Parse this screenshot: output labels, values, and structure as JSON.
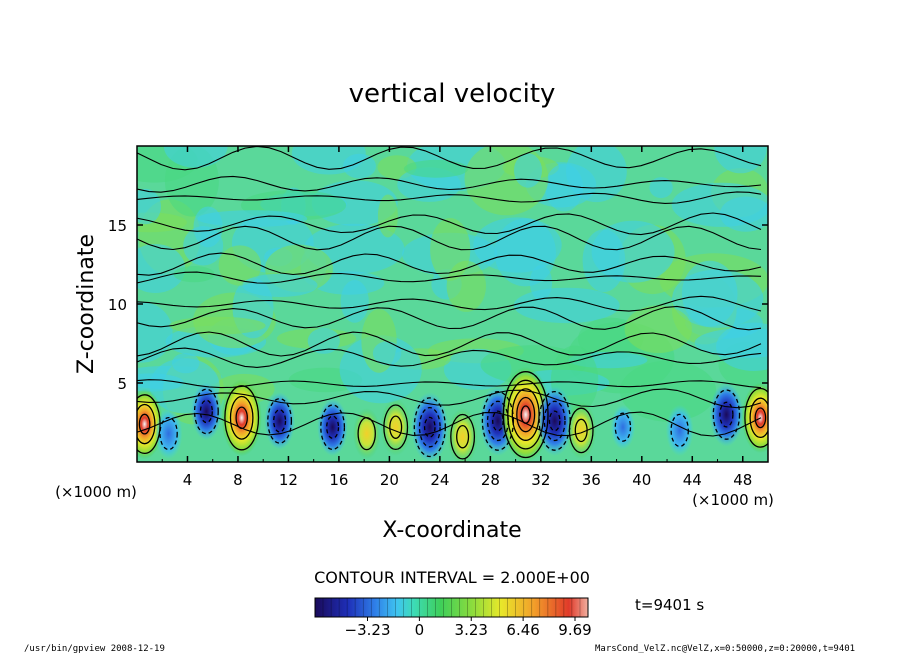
{
  "chart_data": {
    "type": "heatmap",
    "title": "vertical velocity",
    "xlabel": "X-coordinate",
    "ylabel": "Z-coordinate",
    "x_unit_label": "(×1000 m)",
    "y_unit_label": "(×1000 m)",
    "xlim": [
      0,
      50
    ],
    "ylim": [
      0,
      20
    ],
    "x_ticks": [
      4,
      8,
      12,
      16,
      20,
      24,
      28,
      32,
      36,
      40,
      44,
      48
    ],
    "y_ticks": [
      5,
      10,
      15
    ],
    "contour_interval_text": "CONTOUR INTERVAL = 2.000E+00",
    "time_text": "t=9401 s",
    "colorbar": {
      "ticks": [
        -3.23,
        0,
        3.23,
        6.46,
        9.69
      ],
      "tick_labels": [
        "−3.23",
        "0",
        "3.23",
        "6.46",
        "9.69"
      ],
      "colors": [
        "#1a0a5a",
        "#1e2fb8",
        "#2f7fe8",
        "#3fc4f0",
        "#3ddbb8",
        "#3ecf5a",
        "#8fdc3c",
        "#e8e82a",
        "#f2a02a",
        "#e03a2a",
        "#f8f8f8"
      ]
    },
    "features": [
      {
        "kind": "updraft",
        "x": 0.6,
        "z": 2.4,
        "peak": 6
      },
      {
        "kind": "downdraft",
        "x": 2.5,
        "z": 1.8,
        "peak": -3
      },
      {
        "kind": "downdraft",
        "x": 5.5,
        "z": 3.2,
        "peak": -4
      },
      {
        "kind": "updraft",
        "x": 8.3,
        "z": 2.8,
        "peak": 7
      },
      {
        "kind": "downdraft",
        "x": 11.3,
        "z": 2.6,
        "peak": -4
      },
      {
        "kind": "downdraft",
        "x": 15.5,
        "z": 2.2,
        "peak": -4
      },
      {
        "kind": "updraft",
        "x": 18.2,
        "z": 1.8,
        "peak": 3
      },
      {
        "kind": "updraft",
        "x": 20.5,
        "z": 2.2,
        "peak": 4
      },
      {
        "kind": "downdraft",
        "x": 23.2,
        "z": 2.2,
        "peak": -6
      },
      {
        "kind": "updraft",
        "x": 25.8,
        "z": 1.6,
        "peak": 4
      },
      {
        "kind": "downdraft",
        "x": 28.6,
        "z": 2.6,
        "peak": -6
      },
      {
        "kind": "updraft",
        "x": 30.8,
        "z": 3.0,
        "peak": 10
      },
      {
        "kind": "downdraft",
        "x": 33.1,
        "z": 2.6,
        "peak": -6
      },
      {
        "kind": "updraft",
        "x": 35.2,
        "z": 2.0,
        "peak": 4
      },
      {
        "kind": "downdraft",
        "x": 38.5,
        "z": 2.2,
        "peak": -2
      },
      {
        "kind": "downdraft",
        "x": 43.0,
        "z": 2.0,
        "peak": -3
      },
      {
        "kind": "downdraft",
        "x": 46.7,
        "z": 3.0,
        "peak": -5
      },
      {
        "kind": "updraft",
        "x": 49.4,
        "z": 2.8,
        "peak": 6
      }
    ]
  },
  "footer": {
    "left": "/usr/bin/gpview   2008-12-19",
    "right": "MarsCond_VelZ.nc@VelZ,x=0:50000,z=0:20000,t=9401"
  }
}
